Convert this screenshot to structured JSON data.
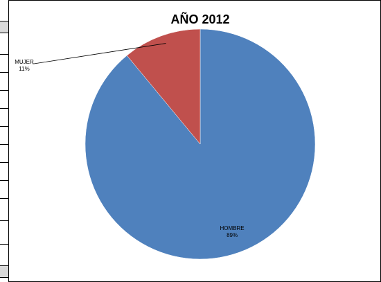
{
  "chart_data": {
    "type": "pie",
    "title": "AÑO 2012",
    "slices": [
      {
        "label": "HOMBRE",
        "percent_label": "89%",
        "value": 89,
        "color": "#4f81bd"
      },
      {
        "label": "MUJER",
        "percent_label": "11%",
        "value": 11,
        "color": "#c0504d"
      }
    ],
    "start_angle_deg": 0,
    "direction": "clockwise"
  }
}
